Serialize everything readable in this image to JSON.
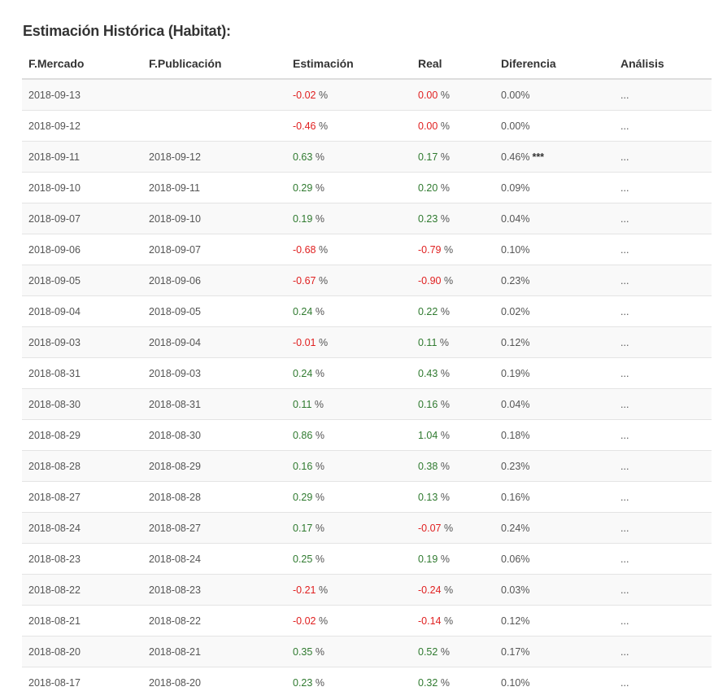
{
  "title": "Estimación Histórica (Habitat):",
  "columns": {
    "mercado": "F.Mercado",
    "publicacion": "F.Publicación",
    "estimacion": "Estimación",
    "real": "Real",
    "diferencia": "Diferencia",
    "analisis": "Análisis"
  },
  "colors": {
    "positive": "#2f7a2f",
    "negative": "#e02020",
    "row_stripe": "#f9f9f9"
  },
  "rows": [
    {
      "mercado": "2018-09-13",
      "publicacion": "",
      "estimacion": "-0.02",
      "real": "0.00",
      "real_sign": "neg",
      "diferencia": "0.00%",
      "stars": "",
      "analisis": "..."
    },
    {
      "mercado": "2018-09-12",
      "publicacion": "",
      "estimacion": "-0.46",
      "real": "0.00",
      "real_sign": "neg",
      "diferencia": "0.00%",
      "stars": "",
      "analisis": "..."
    },
    {
      "mercado": "2018-09-11",
      "publicacion": "2018-09-12",
      "estimacion": "0.63",
      "real": "0.17",
      "real_sign": "pos",
      "diferencia": "0.46%",
      "stars": "***",
      "analisis": "..."
    },
    {
      "mercado": "2018-09-10",
      "publicacion": "2018-09-11",
      "estimacion": "0.29",
      "real": "0.20",
      "real_sign": "pos",
      "diferencia": "0.09%",
      "stars": "",
      "analisis": "..."
    },
    {
      "mercado": "2018-09-07",
      "publicacion": "2018-09-10",
      "estimacion": "0.19",
      "real": "0.23",
      "real_sign": "pos",
      "diferencia": "0.04%",
      "stars": "",
      "analisis": "..."
    },
    {
      "mercado": "2018-09-06",
      "publicacion": "2018-09-07",
      "estimacion": "-0.68",
      "real": "-0.79",
      "real_sign": "neg",
      "diferencia": "0.10%",
      "stars": "",
      "analisis": "..."
    },
    {
      "mercado": "2018-09-05",
      "publicacion": "2018-09-06",
      "estimacion": "-0.67",
      "real": "-0.90",
      "real_sign": "neg",
      "diferencia": "0.23%",
      "stars": "",
      "analisis": "..."
    },
    {
      "mercado": "2018-09-04",
      "publicacion": "2018-09-05",
      "estimacion": "0.24",
      "real": "0.22",
      "real_sign": "pos",
      "diferencia": "0.02%",
      "stars": "",
      "analisis": "..."
    },
    {
      "mercado": "2018-09-03",
      "publicacion": "2018-09-04",
      "estimacion": "-0.01",
      "real": "0.11",
      "real_sign": "pos",
      "diferencia": "0.12%",
      "stars": "",
      "analisis": "..."
    },
    {
      "mercado": "2018-08-31",
      "publicacion": "2018-09-03",
      "estimacion": "0.24",
      "real": "0.43",
      "real_sign": "pos",
      "diferencia": "0.19%",
      "stars": "",
      "analisis": "..."
    },
    {
      "mercado": "2018-08-30",
      "publicacion": "2018-08-31",
      "estimacion": "0.11",
      "real": "0.16",
      "real_sign": "pos",
      "diferencia": "0.04%",
      "stars": "",
      "analisis": "..."
    },
    {
      "mercado": "2018-08-29",
      "publicacion": "2018-08-30",
      "estimacion": "0.86",
      "real": "1.04",
      "real_sign": "pos",
      "diferencia": "0.18%",
      "stars": "",
      "analisis": "..."
    },
    {
      "mercado": "2018-08-28",
      "publicacion": "2018-08-29",
      "estimacion": "0.16",
      "real": "0.38",
      "real_sign": "pos",
      "diferencia": "0.23%",
      "stars": "",
      "analisis": "..."
    },
    {
      "mercado": "2018-08-27",
      "publicacion": "2018-08-28",
      "estimacion": "0.29",
      "real": "0.13",
      "real_sign": "pos",
      "diferencia": "0.16%",
      "stars": "",
      "analisis": "..."
    },
    {
      "mercado": "2018-08-24",
      "publicacion": "2018-08-27",
      "estimacion": "0.17",
      "real": "-0.07",
      "real_sign": "neg",
      "diferencia": "0.24%",
      "stars": "",
      "analisis": "..."
    },
    {
      "mercado": "2018-08-23",
      "publicacion": "2018-08-24",
      "estimacion": "0.25",
      "real": "0.19",
      "real_sign": "pos",
      "diferencia": "0.06%",
      "stars": "",
      "analisis": "..."
    },
    {
      "mercado": "2018-08-22",
      "publicacion": "2018-08-23",
      "estimacion": "-0.21",
      "real": "-0.24",
      "real_sign": "neg",
      "diferencia": "0.03%",
      "stars": "",
      "analisis": "..."
    },
    {
      "mercado": "2018-08-21",
      "publicacion": "2018-08-22",
      "estimacion": "-0.02",
      "real": "-0.14",
      "real_sign": "neg",
      "diferencia": "0.12%",
      "stars": "",
      "analisis": "..."
    },
    {
      "mercado": "2018-08-20",
      "publicacion": "2018-08-21",
      "estimacion": "0.35",
      "real": "0.52",
      "real_sign": "pos",
      "diferencia": "0.17%",
      "stars": "",
      "analisis": "..."
    },
    {
      "mercado": "2018-08-17",
      "publicacion": "2018-08-20",
      "estimacion": "0.23",
      "real": "0.32",
      "real_sign": "pos",
      "diferencia": "0.10%",
      "stars": "",
      "analisis": "..."
    }
  ]
}
